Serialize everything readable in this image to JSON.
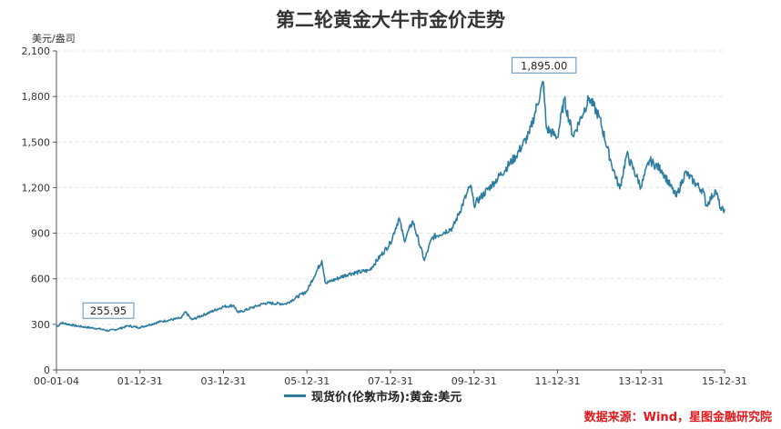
{
  "chart_data": {
    "type": "line",
    "title": "第二轮黄金大牛市金价走势",
    "ylabel": "美元/盎司",
    "ylim": [
      0,
      2100
    ],
    "yticks": [
      "0",
      "300",
      "600",
      "900",
      "1,200",
      "1,500",
      "1,800",
      "2,100"
    ],
    "xticks": [
      "00-01-04",
      "01-12-31",
      "03-12-31",
      "05-12-31",
      "07-12-31",
      "09-12-31",
      "11-12-31",
      "13-12-31",
      "15-12-31"
    ],
    "x_range": [
      "2000-01-04",
      "2015-12-31"
    ],
    "grid": true,
    "series": [
      {
        "name": "现货价(伦敦市场):黄金:美元",
        "color": "#2e7da1",
        "x": [
          "2000-01-04",
          "2000-02-15",
          "2000-06-30",
          "2000-12-31",
          "2001-04-02",
          "2001-06-30",
          "2001-09-20",
          "2001-12-31",
          "2002-06-30",
          "2002-12-31",
          "2003-02-05",
          "2003-04-01",
          "2003-12-31",
          "2004-04-01",
          "2004-05-10",
          "2004-12-31",
          "2005-06-30",
          "2005-12-31",
          "2006-05-12",
          "2006-06-14",
          "2006-12-31",
          "2007-06-30",
          "2007-12-31",
          "2008-03-17",
          "2008-05-01",
          "2008-07-15",
          "2008-10-24",
          "2008-12-31",
          "2009-06-30",
          "2009-12-02",
          "2009-12-31",
          "2010-06-30",
          "2010-12-31",
          "2011-04-30",
          "2011-08-30",
          "2011-09-05",
          "2011-09-26",
          "2011-12-31",
          "2012-02-29",
          "2012-05-16",
          "2012-10-04",
          "2012-12-31",
          "2013-04-16",
          "2013-06-28",
          "2013-08-28",
          "2013-12-31",
          "2014-03-14",
          "2014-06-30",
          "2014-11-05",
          "2015-01-22",
          "2015-06-30",
          "2015-07-24",
          "2015-10-14",
          "2015-12-01",
          "2015-12-31"
        ],
        "values": [
          282,
          310,
          289,
          272,
          258,
          270,
          290,
          279,
          318,
          342,
          383,
          330,
          416,
          425,
          377,
          440,
          435,
          518,
          720,
          570,
          632,
          655,
          834,
          1000,
          850,
          980,
          720,
          870,
          935,
          1215,
          1087,
          1238,
          1405,
          1556,
          1895,
          1820,
          1590,
          1531,
          1780,
          1539,
          1790,
          1664,
          1360,
          1192,
          1420,
          1205,
          1380,
          1315,
          1140,
          1300,
          1172,
          1080,
          1183,
          1050,
          1060
        ]
      }
    ],
    "annotations": [
      {
        "label": "1,895.00",
        "x": "2011-09-05",
        "y": 1895
      },
      {
        "label": "255.95",
        "x": "2001-04-02",
        "y": 255.95
      }
    ]
  },
  "source": "数据来源：Wind，星图金融研究院"
}
